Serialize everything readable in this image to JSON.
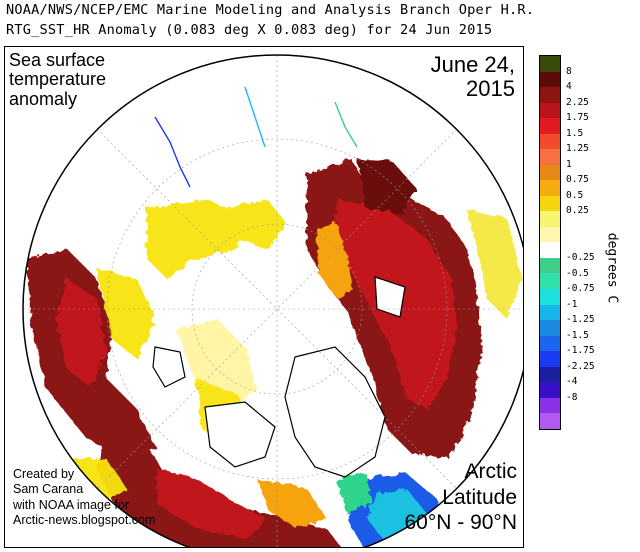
{
  "header": {
    "line1": "NOAA/NWS/NCEP/EMC Marine Modeling and Analysis Branch Oper H.R.",
    "line2": "RTG_SST_HR Anomaly (0.083 deg X 0.083 deg) for 24 Jun 2015"
  },
  "map": {
    "title": "Sea surface temperature anomaly",
    "title_lines": [
      "Sea surface",
      "temperature",
      "anomaly"
    ],
    "date_lines": [
      "June 24,",
      "2015"
    ],
    "credit_lines": [
      "Created by",
      "Sam Carana",
      "with NOAA image for",
      "Arctic-news.blogspot.com"
    ],
    "region_lines": [
      "Arctic",
      "Latitude",
      "60°N - 90°N"
    ]
  },
  "colorbar": {
    "unit": "degrees C",
    "colors": [
      "#3a4a0a",
      "#5e0a06",
      "#8e1410",
      "#b8141a",
      "#e01c20",
      "#f24a2c",
      "#f86f44",
      "#e88816",
      "#f7ab11",
      "#f7d410",
      "#f5f570",
      "#fff7b0",
      "#ffffff",
      "#3fcf8a",
      "#2fe0a8",
      "#1ae0e0",
      "#16b6ea",
      "#1a8ae2",
      "#1a66ec",
      "#1a3cf0",
      "#1a1fa0",
      "#3a10c6",
      "#8a32e8",
      "#b05af2"
    ],
    "labels": [
      "8",
      "4",
      "2.25",
      "1.75",
      "1.5",
      "1.25",
      "1",
      "0.75",
      "0.5",
      "0.25",
      "-0.25",
      "-0.5",
      "-0.75",
      "-1",
      "-1.25",
      "-1.5",
      "-1.75",
      "-2.25",
      "-4",
      "-8"
    ]
  },
  "legend": {
    "colors": {
      "ocean_neutral": "#ffffff",
      "warm_strong": "#7a0e0a",
      "warm": "#c0161c",
      "warm_light": "#f7e40a",
      "cold": "#1a5ae8",
      "land_outline": "#000000",
      "grid": "#9a9a9a"
    }
  }
}
